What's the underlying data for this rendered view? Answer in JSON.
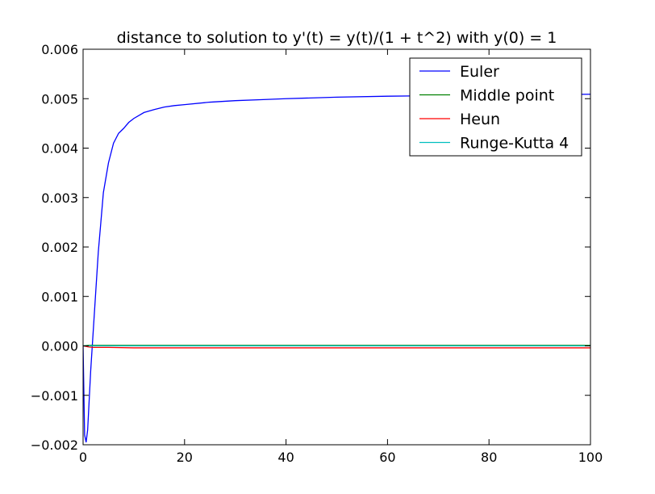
{
  "chart_data": {
    "type": "line",
    "title": "distance to solution to y'(t) = y(t)/(1 + t^2) with y(0) = 1",
    "xlabel": "",
    "ylabel": "",
    "xlim": [
      0,
      100
    ],
    "ylim": [
      -0.002,
      0.006
    ],
    "x_ticks": [
      "0",
      "20",
      "40",
      "60",
      "80",
      "100"
    ],
    "y_ticks": [
      "−0.002",
      "−0.001",
      "0.000",
      "0.001",
      "0.002",
      "0.003",
      "0.004",
      "0.005",
      "0.006"
    ],
    "grid": false,
    "legend_position": "top-right",
    "series": [
      {
        "name": "Euler",
        "color": "#0000ff",
        "x": [
          0,
          0.3,
          0.6,
          0.9,
          1.2,
          1.5,
          2,
          2.5,
          3,
          3.5,
          4,
          5,
          6,
          7,
          8,
          9,
          10,
          12,
          14,
          16,
          18,
          20,
          25,
          30,
          35,
          40,
          50,
          60,
          70,
          80,
          90,
          100
        ],
        "y": [
          0,
          -0.0018,
          -0.00195,
          -0.0017,
          -0.0011,
          -0.0005,
          0.0003,
          0.0011,
          0.0019,
          0.0025,
          0.0031,
          0.0037,
          0.0041,
          0.0043,
          0.0044,
          0.00452,
          0.0046,
          0.00472,
          0.00478,
          0.00483,
          0.00486,
          0.00488,
          0.00493,
          0.00496,
          0.00498,
          0.005,
          0.00503,
          0.00505,
          0.00506,
          0.00507,
          0.00508,
          0.00509
        ]
      },
      {
        "name": "Middle point",
        "color": "#008000",
        "x": [
          0,
          1,
          2,
          5,
          10,
          20,
          50,
          100
        ],
        "y": [
          0,
          1e-05,
          1e-05,
          1e-05,
          1e-05,
          1e-05,
          1e-05,
          1e-05
        ]
      },
      {
        "name": "Heun",
        "color": "#ff0000",
        "x": [
          0,
          1,
          2,
          5,
          10,
          20,
          50,
          100
        ],
        "y": [
          0,
          -2e-05,
          -3e-05,
          -3e-05,
          -4e-05,
          -4e-05,
          -4e-05,
          -4e-05
        ]
      },
      {
        "name": "Runge-Kutta 4",
        "color": "#00bfbf",
        "x": [
          0,
          1,
          2,
          5,
          10,
          20,
          50,
          100
        ],
        "y": [
          0,
          0,
          0,
          0,
          0,
          0,
          0,
          0
        ]
      }
    ]
  }
}
